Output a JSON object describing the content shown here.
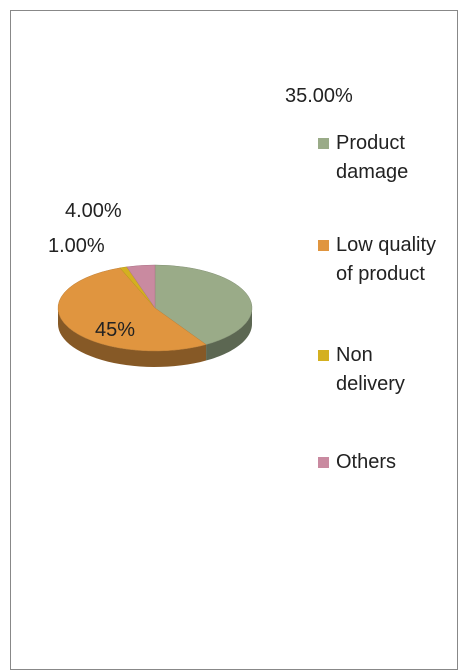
{
  "chart_data": {
    "type": "pie",
    "categories": [
      "Product damage",
      "Low quality of product",
      "Non delivery",
      "Others"
    ],
    "values": [
      35,
      45,
      1,
      4
    ],
    "value_labels": [
      "35.00%",
      "45%",
      "1.00%",
      "4.00%"
    ],
    "colors": [
      "#9aab88",
      "#e0953f",
      "#d4b020",
      "#c98aa0"
    ],
    "legend": "right"
  }
}
